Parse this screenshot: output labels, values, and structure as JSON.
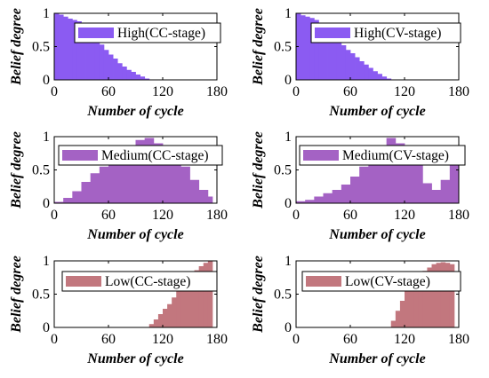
{
  "chart_data": [
    {
      "type": "bar",
      "title": "",
      "legend": "High(CC-stage)",
      "color": "#8b5bf2",
      "xlabel": "Number of cycle",
      "ylabel": "Belief degree",
      "xlim": [
        0,
        180
      ],
      "ylim": [
        0,
        1
      ],
      "xticks": [
        "0",
        "60",
        "120",
        "180"
      ],
      "yticks": [
        "0",
        "0.5",
        "1"
      ],
      "x": [
        0,
        5,
        10,
        15,
        20,
        25,
        30,
        35,
        40,
        45,
        50,
        55,
        60,
        65,
        70,
        75,
        80,
        85,
        90,
        95,
        100,
        105
      ],
      "values": [
        1.0,
        0.98,
        0.95,
        0.92,
        0.9,
        0.88,
        0.82,
        0.75,
        0.68,
        0.6,
        0.53,
        0.45,
        0.38,
        0.32,
        0.25,
        0.2,
        0.15,
        0.12,
        0.08,
        0.05,
        0.02,
        0.0
      ]
    },
    {
      "type": "bar",
      "title": "",
      "legend": "High(CV-stage)",
      "color": "#8b5bf2",
      "xlabel": "Number of cycle",
      "ylabel": "Belief degree",
      "xlim": [
        0,
        180
      ],
      "ylim": [
        0,
        1
      ],
      "xticks": [
        "0",
        "60",
        "120",
        "180"
      ],
      "yticks": [
        "0",
        "0.5",
        "1"
      ],
      "x": [
        0,
        5,
        10,
        15,
        20,
        25,
        30,
        35,
        40,
        45,
        50,
        55,
        60,
        65,
        70,
        75,
        80,
        85,
        90,
        95,
        100,
        105
      ],
      "values": [
        1.0,
        0.97,
        0.95,
        0.93,
        0.9,
        0.86,
        0.8,
        0.74,
        0.66,
        0.59,
        0.52,
        0.45,
        0.4,
        0.34,
        0.28,
        0.23,
        0.18,
        0.13,
        0.09,
        0.05,
        0.02,
        0.0
      ]
    },
    {
      "type": "bar",
      "title": "",
      "legend": "Medium(CC-stage)",
      "color": "#a462c4",
      "xlabel": "Number of cycle",
      "ylabel": "Belief degree",
      "xlim": [
        0,
        180
      ],
      "ylim": [
        0,
        1
      ],
      "xticks": [
        "0",
        "60",
        "120",
        "180"
      ],
      "yticks": [
        "0",
        "0.5",
        "1"
      ],
      "x": [
        0,
        10,
        20,
        30,
        40,
        50,
        60,
        70,
        80,
        90,
        100,
        110,
        120,
        130,
        140,
        150,
        160,
        165,
        170
      ],
      "values": [
        0.02,
        0.08,
        0.18,
        0.32,
        0.45,
        0.55,
        0.65,
        0.75,
        0.85,
        0.95,
        0.98,
        0.9,
        0.82,
        0.7,
        0.55,
        0.35,
        0.2,
        0.1,
        0.0
      ]
    },
    {
      "type": "bar",
      "title": "",
      "legend": "Medium(CV-stage)",
      "color": "#a462c4",
      "xlabel": "Number of cycle",
      "ylabel": "Belief degree",
      "xlim": [
        0,
        180
      ],
      "ylim": [
        0,
        1
      ],
      "xticks": [
        "0",
        "60",
        "120",
        "180"
      ],
      "yticks": [
        "0",
        "0.5",
        "1"
      ],
      "x": [
        0,
        10,
        20,
        30,
        40,
        50,
        60,
        70,
        80,
        90,
        100,
        110,
        120,
        130,
        140,
        150,
        160,
        170
      ],
      "values": [
        0.03,
        0.05,
        0.1,
        0.15,
        0.2,
        0.28,
        0.4,
        0.55,
        0.7,
        0.85,
        0.98,
        0.9,
        0.78,
        0.6,
        0.3,
        0.2,
        0.35,
        0.6
      ]
    },
    {
      "type": "bar",
      "title": "",
      "legend": "Low(CC-stage)",
      "color": "#c2777e",
      "xlabel": "Number of cycle",
      "ylabel": "Belief degree",
      "xlim": [
        0,
        180
      ],
      "ylim": [
        0,
        1
      ],
      "xticks": [
        "0",
        "60",
        "120",
        "180"
      ],
      "yticks": [
        "0",
        "0.5",
        "1"
      ],
      "x": [
        100,
        105,
        110,
        115,
        120,
        125,
        130,
        135,
        140,
        145,
        150,
        155,
        160,
        165,
        170
      ],
      "values": [
        0.0,
        0.05,
        0.12,
        0.2,
        0.28,
        0.35,
        0.45,
        0.55,
        0.65,
        0.73,
        0.8,
        0.86,
        0.92,
        0.97,
        1.0
      ]
    },
    {
      "type": "bar",
      "title": "",
      "legend": "Low(CV-stage)",
      "color": "#c2777e",
      "xlabel": "Number of cycle",
      "ylabel": "Belief degree",
      "xlim": [
        0,
        180
      ],
      "ylim": [
        0,
        1
      ],
      "xticks": [
        "0",
        "60",
        "120",
        "180"
      ],
      "yticks": [
        "0",
        "0.5",
        "1"
      ],
      "x": [
        100,
        105,
        110,
        115,
        120,
        125,
        130,
        135,
        140,
        145,
        150,
        155,
        160,
        165,
        170
      ],
      "values": [
        0.0,
        0.1,
        0.25,
        0.4,
        0.55,
        0.65,
        0.72,
        0.8,
        0.85,
        0.9,
        0.95,
        0.97,
        0.98,
        0.97,
        0.95
      ]
    }
  ]
}
